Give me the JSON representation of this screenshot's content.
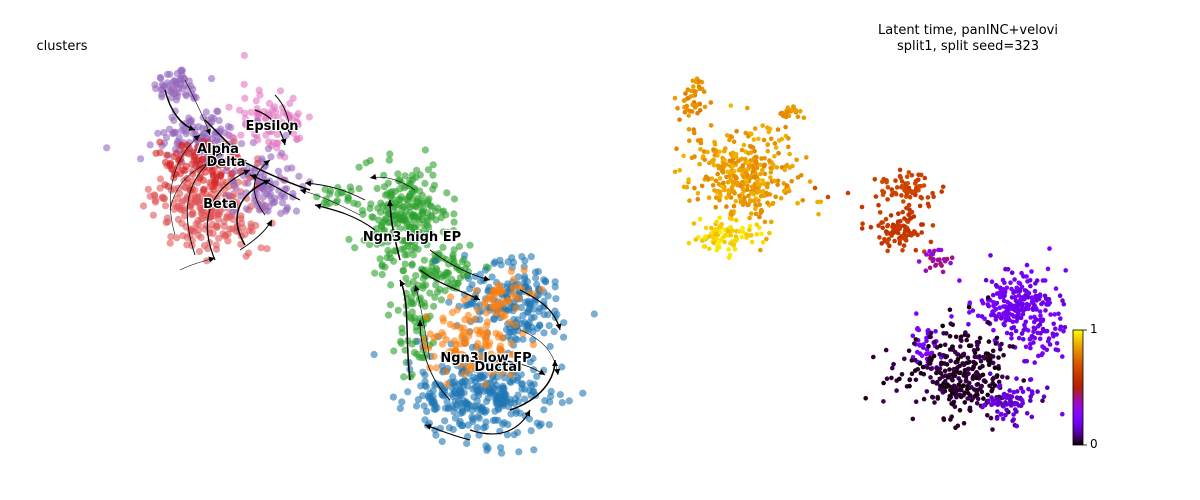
{
  "chart_data": [
    {
      "type": "scatter",
      "title": "clusters",
      "plot_variant": "umap embedding with velocity streamlines",
      "legend": "on data",
      "clusters": [
        {
          "name": "Alpha",
          "color": "#d62728"
        },
        {
          "name": "Beta",
          "color": "#e15759"
        },
        {
          "name": "Delta",
          "color": "#9467bd"
        },
        {
          "name": "Epsilon",
          "color": "#e377c2"
        },
        {
          "name": "Ngn3 high EP",
          "color": "#2ca02c"
        },
        {
          "name": "Ngn3 low EP",
          "color": "#ff7f0e"
        },
        {
          "name": "Ductal",
          "color": "#1f77b4"
        }
      ],
      "streamlines": true,
      "axes": "off"
    },
    {
      "type": "scatter",
      "title": "Latent time, panINC+velovi",
      "subtitle": "split1, split seed=323",
      "colormap": "gnuplot",
      "colorbar": {
        "min": 0,
        "max": 1,
        "tick_labels": [
          "0",
          "1"
        ]
      },
      "axes": "off"
    }
  ]
}
